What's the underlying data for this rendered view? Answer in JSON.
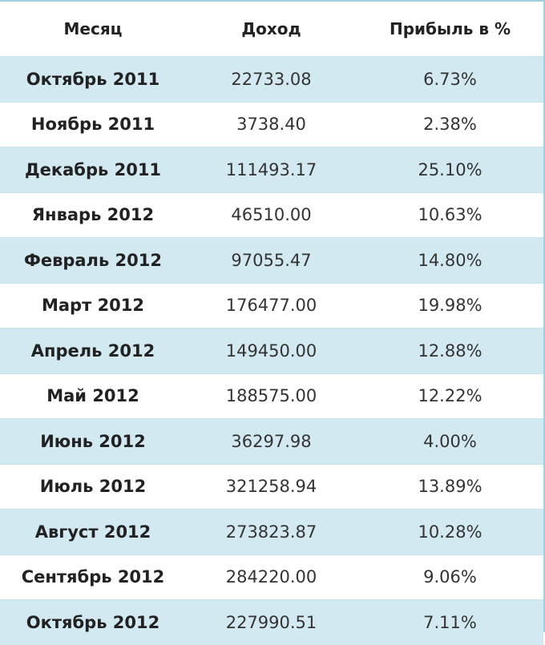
{
  "table": {
    "header": [
      "Месяц",
      "Доход",
      "Прибыль в %"
    ],
    "rows": [
      [
        "Октябрь 2011",
        "22733.08",
        "6.73%"
      ],
      [
        "Ноябрь 2011",
        "3738.40",
        "2.38%"
      ],
      [
        "Декабрь 2011",
        "111493.17",
        "25.10%"
      ],
      [
        "Январь 2012",
        "46510.00",
        "10.63%"
      ],
      [
        "Февраль 2012",
        "97055.47",
        "14.80%"
      ],
      [
        "Март 2012",
        "176477.00",
        "19.98%"
      ],
      [
        "Апрель 2012",
        "149450.00",
        "12.88%"
      ],
      [
        "Май 2012",
        "188575.00",
        "12.22%"
      ],
      [
        "Июнь 2012",
        "36297.98",
        "4.00%"
      ],
      [
        "Июль 2012",
        "321258.94",
        "13.89%"
      ],
      [
        "Август 2012",
        "273823.87",
        "10.28%"
      ],
      [
        "Сентябрь 2012",
        "284220.00",
        "9.06%"
      ],
      [
        "Октябрь 2012",
        "227990.51",
        "7.11%"
      ]
    ]
  }
}
